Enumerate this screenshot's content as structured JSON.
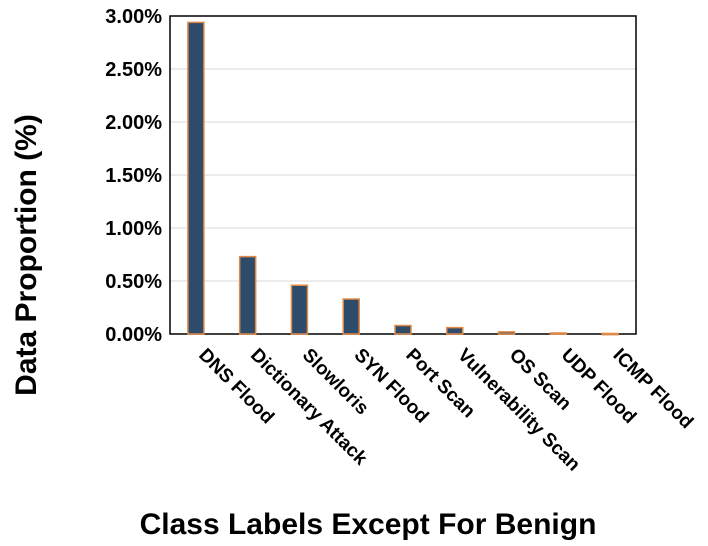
{
  "chart_data": {
    "type": "bar",
    "title": "",
    "xlabel": "Class Labels Except For Benign",
    "ylabel": "Data Proportion (%)",
    "ylim": [
      0,
      3.0
    ],
    "yticks": [
      0,
      0.5,
      1.0,
      1.5,
      2.0,
      2.5,
      3.0
    ],
    "ytick_labels": [
      "0.00%",
      "0.50%",
      "1.00%",
      "1.50%",
      "2.00%",
      "2.50%",
      "3.00%"
    ],
    "categories": [
      "DNS Flood",
      "Dictionary Attack",
      "Slowloris",
      "SYN Flood",
      "Port Scan",
      "Vulnerability Scan",
      "OS Scan",
      "UDP Flood",
      "ICMP Flood"
    ],
    "values": [
      2.94,
      0.73,
      0.46,
      0.33,
      0.08,
      0.06,
      0.02,
      0.01,
      0.005
    ],
    "grid": true,
    "legend": "none",
    "colors": {
      "bar_fill": "#2f4b6a",
      "bar_edge": "#e08a4a",
      "grid": "#d9d9d9",
      "frame": "#000000"
    }
  }
}
